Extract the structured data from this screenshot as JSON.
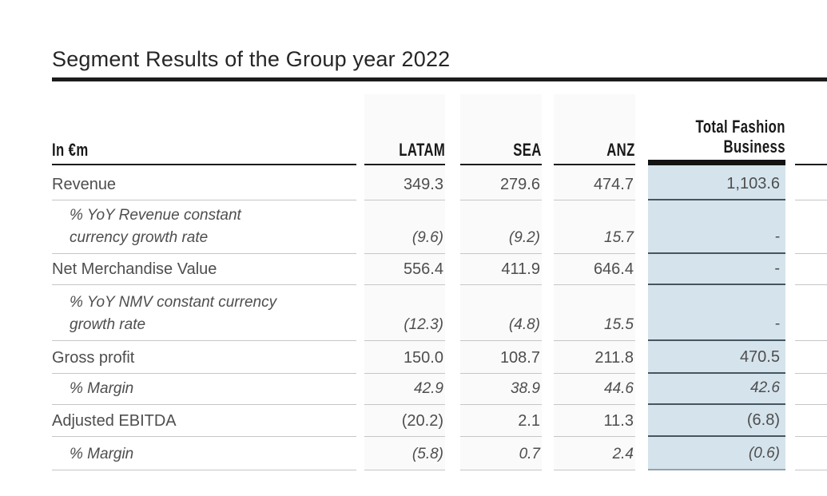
{
  "title": "Segment Results of the Group year 2022",
  "table": {
    "header": {
      "unit": "In €m",
      "latam": "LATAM",
      "sea": "SEA",
      "anz": "ANZ",
      "total_line1": "Total Fashion",
      "total_line2": "Business"
    },
    "columns": [
      "LATAM",
      "SEA",
      "ANZ",
      "Total Fashion Business"
    ],
    "rows": [
      {
        "label": "Revenue",
        "italic": false,
        "values": [
          "349.3",
          "279.6",
          "474.7",
          "1,103.6"
        ]
      },
      {
        "label": "% YoY Revenue constant currency growth rate",
        "italic": true,
        "values": [
          "(9.6)",
          "(9.2)",
          "15.7",
          "-"
        ]
      },
      {
        "label": "Net Merchandise Value",
        "italic": false,
        "values": [
          "556.4",
          "411.9",
          "646.4",
          "-"
        ]
      },
      {
        "label": "% YoY NMV constant currency growth rate",
        "italic": true,
        "values": [
          "(12.3)",
          "(4.8)",
          "15.5",
          "-"
        ]
      },
      {
        "label": "Gross profit",
        "italic": false,
        "values": [
          "150.0",
          "108.7",
          "211.8",
          "470.5"
        ]
      },
      {
        "label": "% Margin",
        "italic": true,
        "values": [
          "42.9",
          "38.9",
          "44.6",
          "42.6"
        ]
      },
      {
        "label": "Adjusted EBITDA",
        "italic": false,
        "values": [
          "(20.2)",
          "2.1",
          "11.3",
          "(6.8)"
        ]
      },
      {
        "label": "% Margin",
        "italic": true,
        "values": [
          "(5.8)",
          "0.7",
          "2.4",
          "(0.6)"
        ]
      }
    ]
  },
  "colors": {
    "highlight_column_bg": "#d5e3ec",
    "rule_dark": "#1c1c1c",
    "separator_light": "#c6c6c6",
    "separator_dark_blue": "#46555f",
    "body_text": "#4e4e4e",
    "title_text": "#262626"
  }
}
